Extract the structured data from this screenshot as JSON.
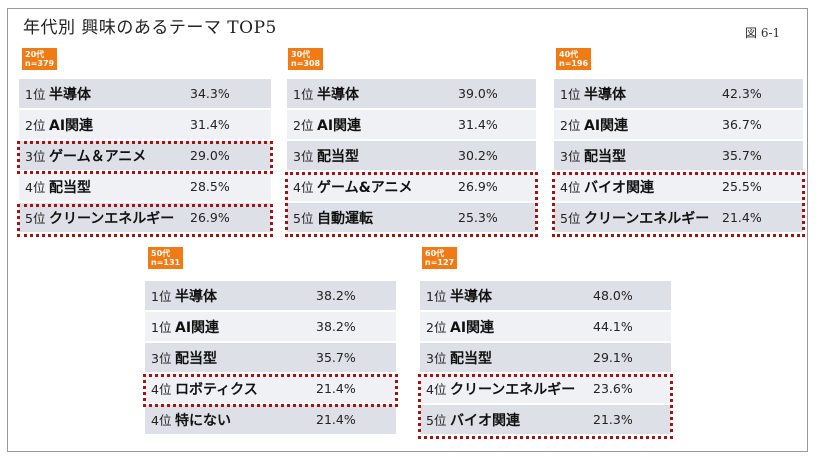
{
  "header": {
    "title": "年代別 興味のあるテーマ TOP5",
    "figure_label": "図 6-1"
  },
  "colors": {
    "badge": "#f07a14",
    "highlight_border": "#a01414",
    "row_dark": "#dde0e6",
    "row_light": "#f0f1f4"
  },
  "groups": [
    {
      "badge": {
        "age": "20代",
        "n": "n=379"
      },
      "rows": [
        {
          "rank": "1位",
          "label": "半導体",
          "pct": "34.3%",
          "highlighted": false
        },
        {
          "rank": "2位",
          "label": "AI関連",
          "pct": "31.4%",
          "highlighted": false
        },
        {
          "rank": "3位",
          "label": "ゲーム＆アニメ",
          "pct": "29.0%",
          "highlighted": true
        },
        {
          "rank": "4位",
          "label": "配当型",
          "pct": "28.5%",
          "highlighted": false
        },
        {
          "rank": "5位",
          "label": "クリーンエネルギー",
          "pct": "26.9%",
          "highlighted": true
        }
      ]
    },
    {
      "badge": {
        "age": "30代",
        "n": "n=308"
      },
      "rows": [
        {
          "rank": "1位",
          "label": "半導体",
          "pct": "39.0%",
          "highlighted": false
        },
        {
          "rank": "2位",
          "label": "AI関連",
          "pct": "31.4%",
          "highlighted": false
        },
        {
          "rank": "3位",
          "label": "配当型",
          "pct": "30.2%",
          "highlighted": false
        },
        {
          "rank": "4位",
          "label": "ゲーム&アニメ",
          "pct": "26.9%",
          "highlighted": true
        },
        {
          "rank": "5位",
          "label": "自動運転",
          "pct": "25.3%",
          "highlighted": true
        }
      ]
    },
    {
      "badge": {
        "age": "40代",
        "n": "n=196"
      },
      "rows": [
        {
          "rank": "1位",
          "label": "半導体",
          "pct": "42.3%",
          "highlighted": false
        },
        {
          "rank": "2位",
          "label": "AI関連",
          "pct": "36.7%",
          "highlighted": false
        },
        {
          "rank": "3位",
          "label": "配当型",
          "pct": "35.7%",
          "highlighted": false
        },
        {
          "rank": "4位",
          "label": "バイオ関連",
          "pct": "25.5%",
          "highlighted": true
        },
        {
          "rank": "5位",
          "label": "クリーンエネルギー",
          "pct": "21.4%",
          "highlighted": true
        }
      ]
    },
    {
      "badge": {
        "age": "50代",
        "n": "n=131"
      },
      "rows": [
        {
          "rank": "1位",
          "label": "半導体",
          "pct": "38.2%",
          "highlighted": false
        },
        {
          "rank": "1位",
          "label": "AI関連",
          "pct": "38.2%",
          "highlighted": false
        },
        {
          "rank": "3位",
          "label": "配当型",
          "pct": "35.7%",
          "highlighted": false
        },
        {
          "rank": "4位",
          "label": "ロボティクス",
          "pct": "21.4%",
          "highlighted": true
        },
        {
          "rank": "4位",
          "label": "特にない",
          "pct": "21.4%",
          "highlighted": false
        }
      ]
    },
    {
      "badge": {
        "age": "60代",
        "n": "n=127"
      },
      "rows": [
        {
          "rank": "1位",
          "label": "半導体",
          "pct": "48.0%",
          "highlighted": false
        },
        {
          "rank": "2位",
          "label": "AI関連",
          "pct": "44.1%",
          "highlighted": false
        },
        {
          "rank": "3位",
          "label": "配当型",
          "pct": "29.1%",
          "highlighted": false
        },
        {
          "rank": "4位",
          "label": "クリーンエネルギー",
          "pct": "23.6%",
          "highlighted": true
        },
        {
          "rank": "5位",
          "label": "バイオ関連",
          "pct": "21.3%",
          "highlighted": true
        }
      ]
    }
  ]
}
